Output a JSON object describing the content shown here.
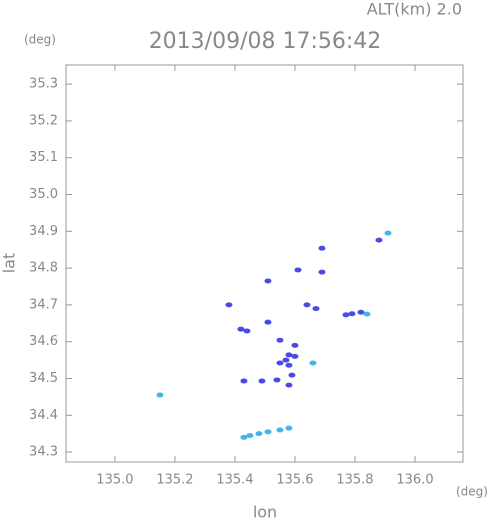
{
  "chart_data": {
    "type": "scatter",
    "title": "2013/09/08 17:56:42",
    "subtitle": "ALT(km) 2.0",
    "y_unit": "(deg)",
    "x_unit": "(deg)",
    "x_label": "lon",
    "y_label": "lat",
    "xlim": [
      134.837,
      136.16
    ],
    "ylim": [
      34.273,
      35.352
    ],
    "xticks": [
      {
        "value": 135,
        "label": "135.0"
      },
      135.2,
      135.4,
      135.6,
      135.8,
      {
        "value": 136,
        "label": "136.0"
      }
    ],
    "yticks": [
      35.3,
      35.2,
      35.1,
      {
        "value": 35,
        "label": "35.0"
      },
      34.9,
      34.8,
      34.7,
      34.6,
      34.5,
      34.4,
      34.3
    ],
    "grid": false,
    "series": [
      {
        "color": "#4a4ae6",
        "x": [
          135.88,
          135.77,
          135.79,
          135.82,
          135.38,
          135.51,
          135.61,
          135.69,
          135.69,
          135.64,
          135.67,
          135.42,
          135.44,
          135.51,
          135.55,
          135.6,
          135.58,
          135.58,
          135.55,
          135.59,
          135.58,
          135.43,
          135.54,
          135.49,
          135.6,
          135.57
        ],
        "values": [
          34.876,
          34.673,
          34.676,
          34.68,
          34.7,
          34.765,
          34.795,
          34.854,
          34.789,
          34.7,
          34.69,
          34.634,
          34.629,
          34.653,
          34.604,
          34.59,
          34.564,
          34.536,
          34.542,
          34.509,
          34.482,
          34.493,
          34.496,
          34.493,
          34.56,
          34.55
        ]
      },
      {
        "color": "#3fb6e8",
        "x": [
          135.15,
          135.91,
          135.84,
          135.66,
          135.43,
          135.45,
          135.48,
          135.51,
          135.55,
          135.58
        ],
        "values": [
          34.455,
          34.895,
          34.675,
          34.542,
          34.34,
          34.345,
          34.35,
          34.355,
          34.36,
          34.365
        ]
      }
    ]
  }
}
